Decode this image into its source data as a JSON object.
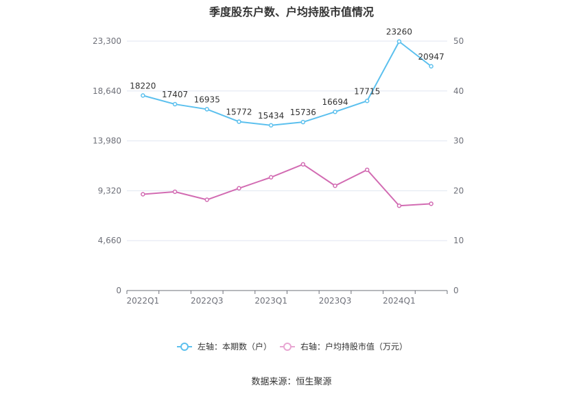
{
  "title": "季度股东户数、户均持股市值情况",
  "source": "数据来源：恒生聚源",
  "legend": [
    {
      "label": "左轴：本期数（户）",
      "color": "#5bc0ee"
    },
    {
      "label": "右轴：户均持股市值（万元）",
      "color": "#e8a5d2"
    }
  ],
  "chart_data": {
    "type": "line",
    "categories": [
      "2022Q1",
      "2022Q2",
      "2022Q3",
      "2022Q4",
      "2023Q1",
      "2023Q2",
      "2023Q3",
      "2023Q4",
      "2024Q1",
      "2024Q2"
    ],
    "x_tick_labels": [
      "2022Q1",
      "2022Q3",
      "2023Q1",
      "2023Q3",
      "2024Q1"
    ],
    "left_axis": {
      "min": 0,
      "max": 23300,
      "ticks": [
        0,
        4660,
        9320,
        13980,
        18640,
        23300
      ],
      "tick_labels": [
        "0",
        "4,660",
        "9,320",
        "13,980",
        "18,640",
        "23,300"
      ]
    },
    "right_axis": {
      "min": 0,
      "max": 50,
      "ticks": [
        0,
        10,
        20,
        30,
        40,
        50
      ],
      "tick_labels": [
        "0",
        "10",
        "20",
        "30",
        "40",
        "50"
      ]
    },
    "series": [
      {
        "name": "左轴：本期数（户）",
        "axis": "left",
        "color": "#5bc0ee",
        "show_labels": true,
        "values": [
          18220,
          17407,
          16935,
          15772,
          15434,
          15736,
          16694,
          17715,
          23260,
          20947
        ]
      },
      {
        "name": "右轴：户均持股市值（万元）",
        "axis": "right",
        "color": "#d26bb2",
        "show_labels": false,
        "values": [
          19.3,
          19.8,
          18.2,
          20.5,
          22.7,
          25.3,
          21.0,
          24.2,
          17.0,
          17.4
        ]
      }
    ],
    "grid": true,
    "legend_position": "bottom"
  }
}
